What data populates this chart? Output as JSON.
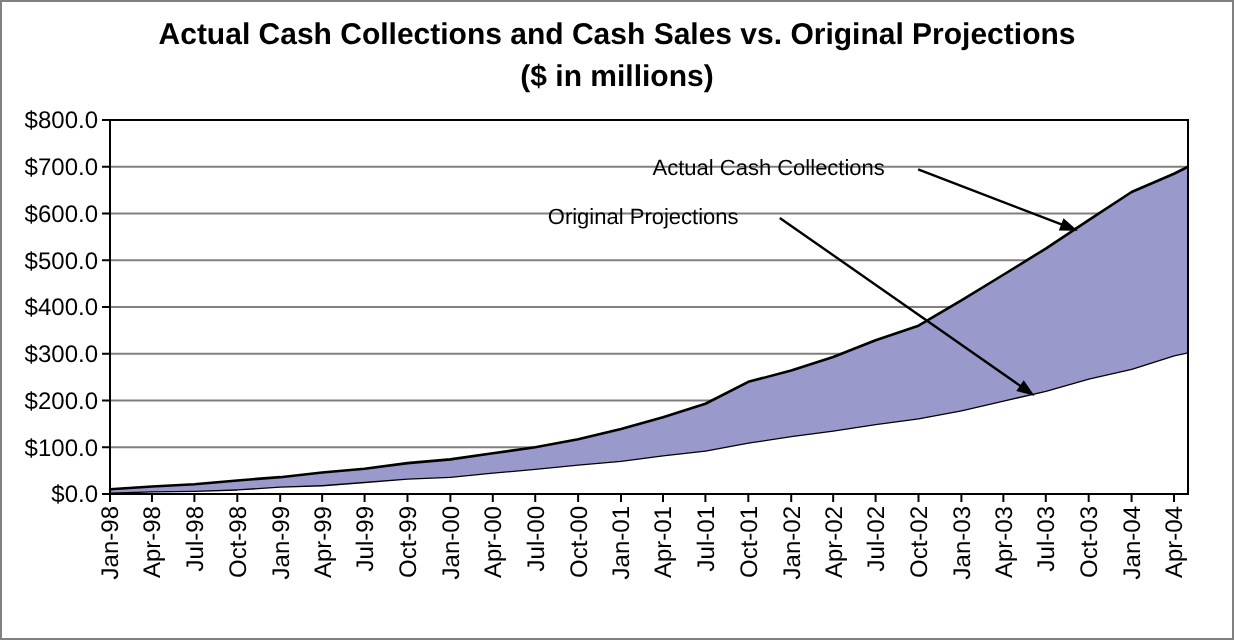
{
  "chart_data": {
    "type": "area",
    "stacked": true,
    "title": "Actual Cash Collections and Cash Sales vs. Original Projections",
    "subtitle": "($ in millions)",
    "x": [
      "1998-01",
      "1998-04",
      "1998-07",
      "1998-10",
      "1999-01",
      "1999-04",
      "1999-07",
      "1999-10",
      "2000-01",
      "2000-04",
      "2000-07",
      "2000-10",
      "2001-01",
      "2001-04",
      "2001-07",
      "2001-10",
      "2002-01",
      "2002-04",
      "2002-07",
      "2002-10",
      "2003-01",
      "2003-04",
      "2003-07",
      "2003-10",
      "2004-01",
      "2004-04",
      "2004-05"
    ],
    "series": [
      {
        "color": "#ffffff",
        "values": [
          3,
          6,
          7,
          10,
          16,
          19,
          26,
          33,
          37,
          46,
          54,
          63,
          71,
          83,
          93,
          110,
          124,
          136,
          150,
          162,
          179,
          200,
          221,
          247,
          268,
          297,
          303
        ]
      },
      {
        "color": "#9999cc",
        "values": [
          7,
          10,
          14,
          19,
          20,
          27,
          28,
          33,
          37,
          41,
          46,
          54,
          68,
          81,
          100,
          130,
          140,
          157,
          179,
          198,
          235,
          269,
          304,
          339,
          378,
          388,
          397
        ]
      }
    ],
    "xlim": [
      "1998-01",
      "2004-05"
    ],
    "xticks": [
      {
        "value": "1998-01",
        "label": "Jan-98"
      },
      {
        "value": "1998-04",
        "label": "Apr-98"
      },
      {
        "value": "1998-07",
        "label": "Jul-98"
      },
      {
        "value": "1998-10",
        "label": "Oct-98"
      },
      {
        "value": "1999-01",
        "label": "Jan-99"
      },
      {
        "value": "1999-04",
        "label": "Apr-99"
      },
      {
        "value": "1999-07",
        "label": "Jul-99"
      },
      {
        "value": "1999-10",
        "label": "Oct-99"
      },
      {
        "value": "2000-01",
        "label": "Jan-00"
      },
      {
        "value": "2000-04",
        "label": "Apr-00"
      },
      {
        "value": "2000-07",
        "label": "Jul-00"
      },
      {
        "value": "2000-10",
        "label": "Oct-00"
      },
      {
        "value": "2001-01",
        "label": "Jan-01"
      },
      {
        "value": "2001-04",
        "label": "Apr-01"
      },
      {
        "value": "2001-07",
        "label": "Jul-01"
      },
      {
        "value": "2001-10",
        "label": "Oct-01"
      },
      {
        "value": "2002-01",
        "label": "Jan-02"
      },
      {
        "value": "2002-04",
        "label": "Apr-02"
      },
      {
        "value": "2002-07",
        "label": "Jul-02"
      },
      {
        "value": "2002-10",
        "label": "Oct-02"
      },
      {
        "value": "2003-01",
        "label": "Jan-03"
      },
      {
        "value": "2003-04",
        "label": "Apr-03"
      },
      {
        "value": "2003-07",
        "label": "Jul-03"
      },
      {
        "value": "2003-10",
        "label": "Oct-03"
      },
      {
        "value": "2004-01",
        "label": "Jan-04"
      },
      {
        "value": "2004-04",
        "label": "Apr-04"
      }
    ],
    "ylim": [
      0,
      800
    ],
    "yticks": [
      {
        "value": 0,
        "label": "$0.0"
      },
      {
        "value": 100,
        "label": "$100.0"
      },
      {
        "value": 200,
        "label": "$200.0"
      },
      {
        "value": 300,
        "label": "$300.0"
      },
      {
        "value": 400,
        "label": "$400.0"
      },
      {
        "value": 500,
        "label": "$500.0"
      },
      {
        "value": 600,
        "label": "$600.0"
      },
      {
        "value": 700,
        "label": "$700.0"
      },
      {
        "value": 800,
        "label": "$800.0"
      }
    ],
    "grid": "y",
    "annotations": [
      "Actual Cash Collections",
      "Original Projections"
    ]
  }
}
